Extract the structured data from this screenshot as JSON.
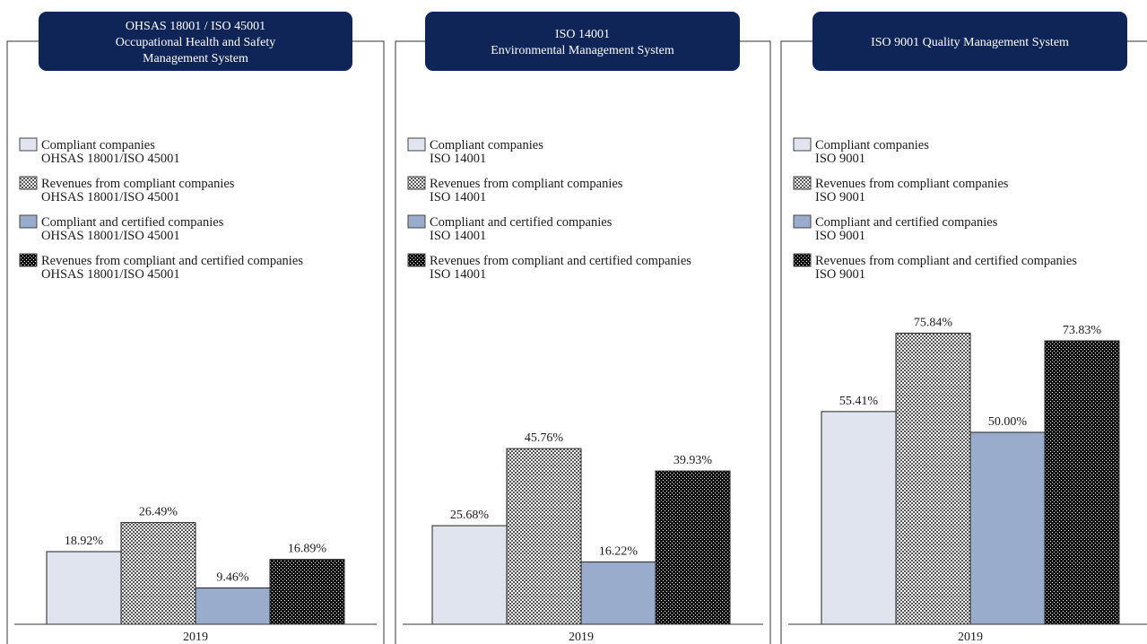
{
  "chart_data": [
    {
      "type": "bar",
      "title_lines": [
        "OHSAS 18001 / ISO 45001",
        "Occupational Health and Safety",
        "Management System"
      ],
      "categories": [
        "2019"
      ],
      "ylim": [
        0,
        100
      ],
      "series": [
        {
          "name_lines": [
            "Compliant companies",
            "OHSAS 18001/ISO 45001"
          ],
          "values": [
            18.92
          ],
          "label": "18.92%"
        },
        {
          "name_lines": [
            "Revenues from compliant companies",
            "OHSAS 18001/ISO 45001"
          ],
          "values": [
            26.49
          ],
          "label": "26.49%"
        },
        {
          "name_lines": [
            "Compliant and certified companies",
            "OHSAS 18001/ISO 45001"
          ],
          "values": [
            9.46
          ],
          "label": "9.46%"
        },
        {
          "name_lines": [
            "Revenues from compliant and certified companies",
            "OHSAS 18001/ISO 45001"
          ],
          "values": [
            16.89
          ],
          "label": "16.89%"
        }
      ]
    },
    {
      "type": "bar",
      "title_lines": [
        "ISO 14001",
        "Environmental Management System"
      ],
      "categories": [
        "2019"
      ],
      "ylim": [
        0,
        100
      ],
      "series": [
        {
          "name_lines": [
            "Compliant companies",
            "ISO 14001"
          ],
          "values": [
            25.68
          ],
          "label": "25.68%"
        },
        {
          "name_lines": [
            "Revenues from compliant companies",
            "ISO 14001"
          ],
          "values": [
            45.76
          ],
          "label": "45.76%"
        },
        {
          "name_lines": [
            "Compliant and certified companies",
            "ISO 14001"
          ],
          "values": [
            16.22
          ],
          "label": "16.22%"
        },
        {
          "name_lines": [
            "Revenues from compliant and certified companies",
            "ISO 14001"
          ],
          "values": [
            39.93
          ],
          "label": "39.93%"
        }
      ]
    },
    {
      "type": "bar",
      "title_lines": [
        "ISO 9001 Quality Management System"
      ],
      "categories": [
        "2019"
      ],
      "ylim": [
        0,
        100
      ],
      "series": [
        {
          "name_lines": [
            "Compliant companies",
            "ISO 9001"
          ],
          "values": [
            55.41
          ],
          "label": "55.41%"
        },
        {
          "name_lines": [
            "Revenues from compliant companies",
            "ISO 9001"
          ],
          "values": [
            75.84
          ],
          "label": "75.84%"
        },
        {
          "name_lines": [
            "Compliant and certified companies",
            "ISO 9001"
          ],
          "values": [
            50.0
          ],
          "label": "50.00%"
        },
        {
          "name_lines": [
            "Revenues from compliant and certified companies",
            "ISO 9001"
          ],
          "values": [
            73.83
          ],
          "label": "73.83%"
        }
      ]
    }
  ],
  "colors": {
    "title_box": "#0f2558",
    "title_text": "#ffffff",
    "frame": "#333333",
    "compliant": "#dfe4ee",
    "compliant_certified": "#9aaccc",
    "pattern_dark": "#1a1a1a",
    "pattern_light": "#ffffff"
  },
  "fills": [
    "light-fill",
    "checker-gray-pattern",
    "blue-fill",
    "checker-black-pattern"
  ]
}
